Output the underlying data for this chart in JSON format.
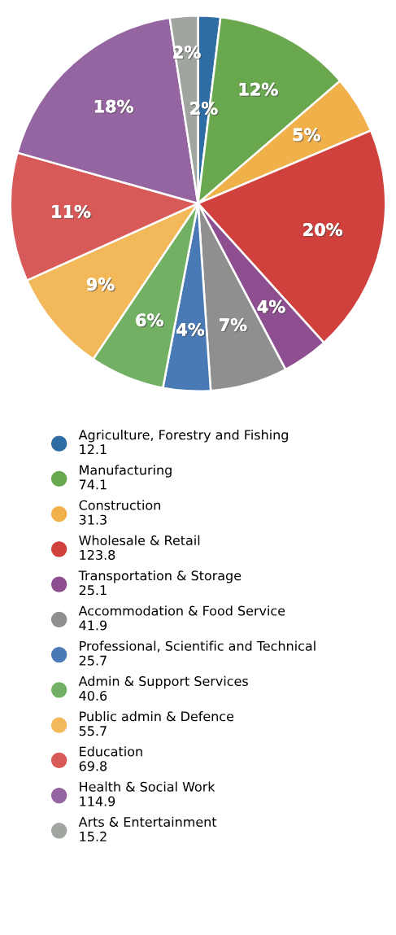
{
  "chart_data": {
    "type": "pie",
    "legend": "bottom",
    "categories": [
      "Agriculture, Forestry and Fishing",
      "Manufacturing",
      "Construction",
      "Wholesale & Retail",
      "Transportation & Storage",
      "Accommodation & Food Service",
      "Professional, Scientific and Technical",
      "Admin & Support Services",
      "Public admin & Defence",
      "Education",
      "Health & Social Work",
      "Arts & Entertainment"
    ],
    "values": [
      12.1,
      74.1,
      31.3,
      123.8,
      25.1,
      41.9,
      25.7,
      40.6,
      55.7,
      69.8,
      114.9,
      15.2
    ],
    "value_labels": [
      "12.1",
      "74.1",
      "31.3",
      "123.8",
      "25.1",
      "41.9",
      "25.7",
      "40.6",
      "55.7",
      "69.8",
      "114.9",
      "15.2"
    ],
    "annotations": [
      {
        "text": "2%",
        "x": "Agriculture, Forestry and Fishing"
      },
      {
        "text": "12%",
        "x": "Manufacturing"
      },
      {
        "text": "5%",
        "x": "Construction"
      },
      {
        "text": "20%",
        "x": "Wholesale & Retail"
      },
      {
        "text": "4%",
        "x": "Transportation & Storage"
      },
      {
        "text": "7%",
        "x": "Accommodation & Food Service"
      },
      {
        "text": "4%",
        "x": "Professional, Scientific and Technical"
      },
      {
        "text": "6%",
        "x": "Admin & Support Services"
      },
      {
        "text": "9%",
        "x": "Public admin & Defence"
      },
      {
        "text": "11%",
        "x": "Education"
      },
      {
        "text": "18%",
        "x": "Health & Social Work"
      },
      {
        "text": "2%",
        "x": "Arts & Entertainment"
      }
    ],
    "colors": [
      "#2e6da4",
      "#6aa84f",
      "#f0b04a",
      "#d0403c",
      "#8e4f91",
      "#8f8f8f",
      "#4a7ab5",
      "#72b064",
      "#f2b85a",
      "#d85a58",
      "#9465a0",
      "#a0a5a0"
    ]
  }
}
